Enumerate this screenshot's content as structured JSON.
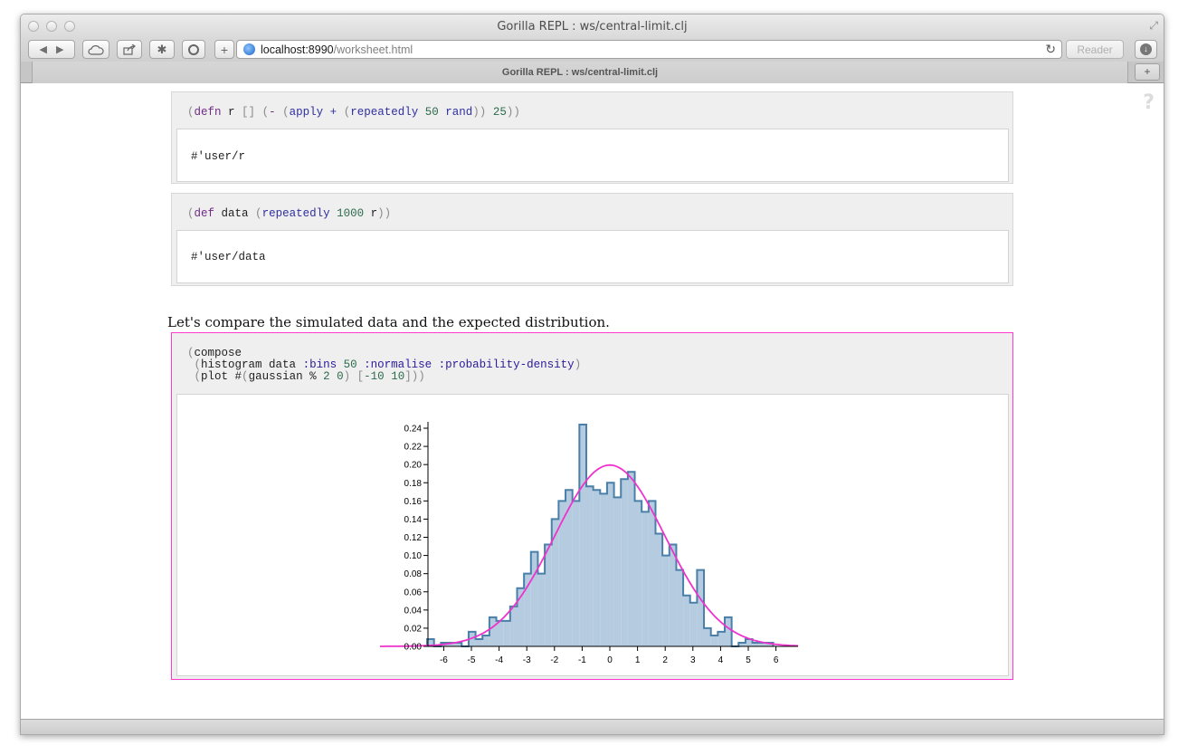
{
  "window": {
    "title": "Gorilla REPL : ws/central-limit.clj"
  },
  "toolbar": {
    "url_host": "localhost:8990",
    "url_path": "/worksheet.html",
    "reader_label": "Reader"
  },
  "tabs": [
    {
      "label": "Gorilla REPL : ws/central-limit.clj"
    }
  ],
  "help": {
    "label": "?"
  },
  "segments": [
    {
      "output": "#'user/r"
    },
    {
      "output": "#'user/data"
    }
  ],
  "prose": "Let's compare the simulated data and the expected distribution.",
  "colors": {
    "histogram_fill": "#b5cbe0",
    "histogram_stroke": "#4a7fa8",
    "curve": "#ee33cc",
    "selected_border": "#ff3ad0"
  },
  "chart_data": {
    "type": "bar",
    "title": "",
    "xlabel": "",
    "ylabel": "",
    "xlim": [
      -6.6,
      6.8
    ],
    "ylim": [
      0,
      0.245
    ],
    "x_ticks": [
      -6,
      -5,
      -4,
      -3,
      -2,
      -1,
      0,
      1,
      2,
      3,
      4,
      5,
      6
    ],
    "y_ticks": [
      0.0,
      0.02,
      0.04,
      0.06,
      0.08,
      0.1,
      0.12,
      0.14,
      0.16,
      0.18,
      0.2,
      0.22,
      0.24
    ],
    "bin_start": -6.6,
    "bin_width": 0.25,
    "values": [
      0.008,
      0.0,
      0.004,
      0.004,
      0.004,
      0.0,
      0.016,
      0.008,
      0.012,
      0.032,
      0.028,
      0.028,
      0.044,
      0.064,
      0.08,
      0.104,
      0.08,
      0.112,
      0.14,
      0.16,
      0.172,
      0.16,
      0.244,
      0.176,
      0.172,
      0.168,
      0.18,
      0.164,
      0.184,
      0.192,
      0.16,
      0.148,
      0.16,
      0.124,
      0.1,
      0.112,
      0.084,
      0.056,
      0.048,
      0.084,
      0.02,
      0.012,
      0.016,
      0.032,
      0.0,
      0.004,
      0.008,
      0.004,
      0.004,
      0.004
    ],
    "curve": {
      "type": "line",
      "function": "gaussian",
      "mean": 0,
      "sd": 2,
      "domain": [
        -10,
        10
      ]
    },
    "grid": false
  }
}
